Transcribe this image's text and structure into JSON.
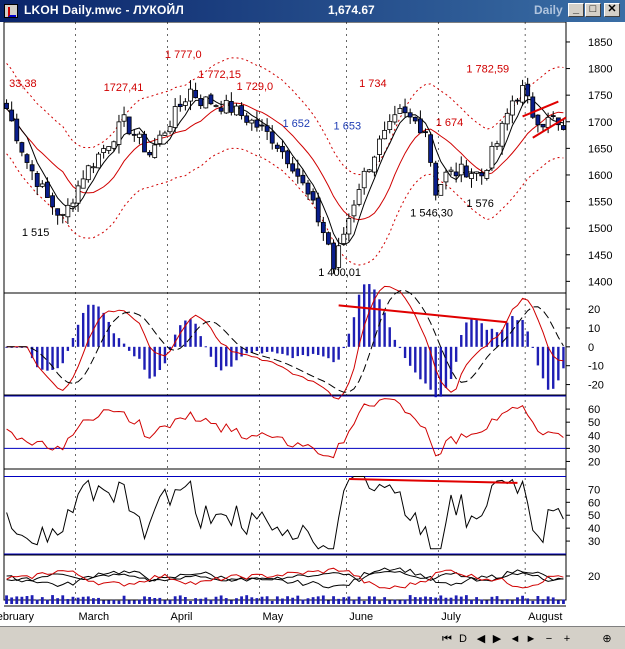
{
  "window": {
    "title": "LKOH Daily.mwc - ЛУКОЙЛ",
    "last_price": "1,674.67",
    "period": "Daily",
    "buttons": [
      "_",
      "□",
      "✕"
    ]
  },
  "statusbar": {
    "buttons": [
      "⏮",
      "D",
      "◀",
      "▶",
      "◄",
      "►",
      "−",
      "+",
      "⊕"
    ]
  },
  "chart_data": [
    {
      "type": "candlestick",
      "panel": "price",
      "y_ticks": [
        1400,
        1450,
        1500,
        1550,
        1600,
        1650,
        1700,
        1750,
        1800,
        1850
      ],
      "ylim": [
        1380,
        1880
      ],
      "annotations": [
        {
          "text": "33,38",
          "x": 0.5,
          "y": 1765,
          "color": "#d00000"
        },
        {
          "text": "1727,41",
          "x": 19,
          "y": 1758,
          "color": "#d00000"
        },
        {
          "text": "1 777,0",
          "x": 31,
          "y": 1820,
          "color": "#d00000"
        },
        {
          "text": "1 772,15",
          "x": 37.5,
          "y": 1782,
          "color": "#d00000"
        },
        {
          "text": "1 729,0",
          "x": 45,
          "y": 1760,
          "color": "#d00000"
        },
        {
          "text": "1 652",
          "x": 54,
          "y": 1690,
          "color": "#1e3cb4"
        },
        {
          "text": "1 653",
          "x": 64,
          "y": 1685,
          "color": "#1e3cb4"
        },
        {
          "text": "1 734",
          "x": 69,
          "y": 1765,
          "color": "#d00000"
        },
        {
          "text": "1 674",
          "x": 84,
          "y": 1692,
          "color": "#d00000"
        },
        {
          "text": "1 782,59",
          "x": 90,
          "y": 1793,
          "color": "#d00000"
        },
        {
          "text": "1 515",
          "x": 3,
          "y": 1485,
          "color": "#000000"
        },
        {
          "text": "1 400,01",
          "x": 61,
          "y": 1410,
          "color": "#000000"
        },
        {
          "text": "1 546,30",
          "x": 79,
          "y": 1522,
          "color": "#000000"
        },
        {
          "text": "1 576",
          "x": 90,
          "y": 1540,
          "color": "#000000"
        }
      ],
      "month_labels": [
        "February",
        "March",
        "April",
        "May",
        "June",
        "July",
        "August"
      ],
      "month_starts": [
        0,
        14,
        32,
        50,
        67,
        85,
        102
      ]
    },
    {
      "type": "bar",
      "panel": "macd",
      "y_ticks": [
        -20,
        -10,
        0,
        10,
        20
      ],
      "ylim": [
        -25,
        28
      ]
    },
    {
      "type": "line",
      "panel": "rsi",
      "y_ticks": [
        20,
        30,
        40,
        50,
        60
      ],
      "ylim": [
        15,
        70
      ],
      "levels": [
        70,
        30
      ]
    },
    {
      "type": "line",
      "panel": "stochastic",
      "y_ticks": [
        30,
        40,
        50,
        60,
        70
      ],
      "ylim": [
        20,
        85
      ],
      "levels": [
        80,
        20
      ]
    },
    {
      "type": "line",
      "panel": "dmi",
      "y_ticks": [
        20
      ],
      "ylim": [
        0,
        40
      ]
    }
  ]
}
